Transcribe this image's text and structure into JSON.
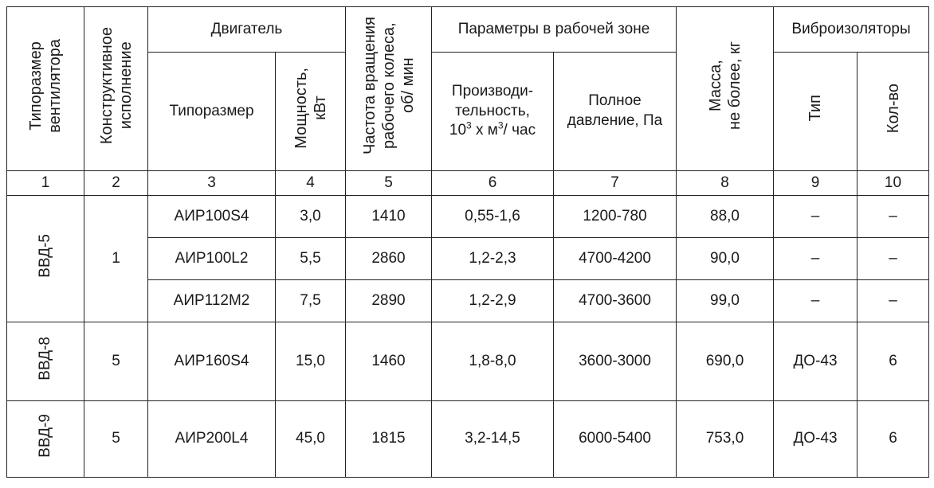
{
  "headers": {
    "col1": "Типоразмер\nвентилятора",
    "col2": "Конструктивное\nисполнение",
    "engine_group": "Двигатель",
    "col3": "Типоразмер",
    "col4": "Мощность,\nкВт",
    "col5": "Частота вращения\nрабочего колеса,\nоб/ мин",
    "params_group": "Параметры в рабочей зоне",
    "col6_line1": "Производи-",
    "col6_line2": "тельность,",
    "col6_pre": "10",
    "col6_sup": "3",
    "col6_post": " х м",
    "col6_sup2": "3",
    "col6_end": "/ час",
    "col7": "Полное\nдавление, Па",
    "col8": "Масса,\nне более, кг",
    "vibro_group": "Виброизоляторы",
    "col9": "Тип",
    "col10": "Кол-во"
  },
  "column_numbers": [
    "1",
    "2",
    "3",
    "4",
    "5",
    "6",
    "7",
    "8",
    "9",
    "10"
  ],
  "groups": [
    {
      "size": "ВВД-5",
      "execution": "1",
      "rows": [
        {
          "engine": "АИР100S4",
          "power": "3,0",
          "rpm": "1410",
          "capacity": "0,55-1,6",
          "pressure": "1200-780",
          "mass": "88,0",
          "type": "–",
          "count": "–"
        },
        {
          "engine": "АИР100L2",
          "power": "5,5",
          "rpm": "2860",
          "capacity": "1,2-2,3",
          "pressure": "4700-4200",
          "mass": "90,0",
          "type": "–",
          "count": "–"
        },
        {
          "engine": "АИР112М2",
          "power": "7,5",
          "rpm": "2890",
          "capacity": "1,2-2,9",
          "pressure": "4700-3600",
          "mass": "99,0",
          "type": "–",
          "count": "–"
        }
      ]
    },
    {
      "size": "ВВД-8",
      "execution": "5",
      "rows": [
        {
          "engine": "АИР160S4",
          "power": "15,0",
          "rpm": "1460",
          "capacity": "1,8-8,0",
          "pressure": "3600-3000",
          "mass": "690,0",
          "type": "ДО-43",
          "count": "6"
        }
      ]
    },
    {
      "size": "ВВД-9",
      "execution": "5",
      "rows": [
        {
          "engine": "АИР200L4",
          "power": "45,0",
          "rpm": "1815",
          "capacity": "3,2-14,5",
          "pressure": "6000-5400",
          "mass": "753,0",
          "type": "ДО-43",
          "count": "6"
        }
      ]
    }
  ]
}
